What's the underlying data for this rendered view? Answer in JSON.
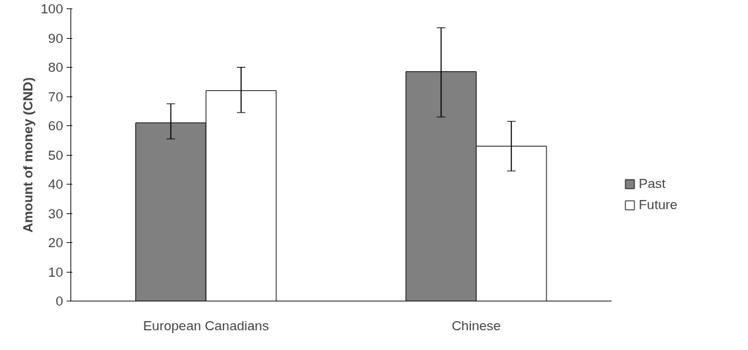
{
  "chart_data": {
    "type": "bar",
    "ylabel": "Amount of money (CND)",
    "categories": [
      "European Canadians",
      "Chinese"
    ],
    "series": [
      {
        "name": "Past",
        "color": "#808080",
        "values": [
          61,
          78.5
        ],
        "errors": [
          [
            55.5,
            67.5
          ],
          [
            63,
            93.5
          ]
        ]
      },
      {
        "name": "Future",
        "color": "#ffffff",
        "values": [
          72,
          53
        ],
        "errors": [
          [
            64.5,
            80
          ],
          [
            44.5,
            61.5
          ]
        ]
      }
    ],
    "ylim": [
      0,
      100
    ],
    "yticks": [
      0,
      10,
      20,
      30,
      40,
      50,
      60,
      70,
      80,
      90,
      100
    ],
    "grid": false,
    "legend": "right"
  }
}
